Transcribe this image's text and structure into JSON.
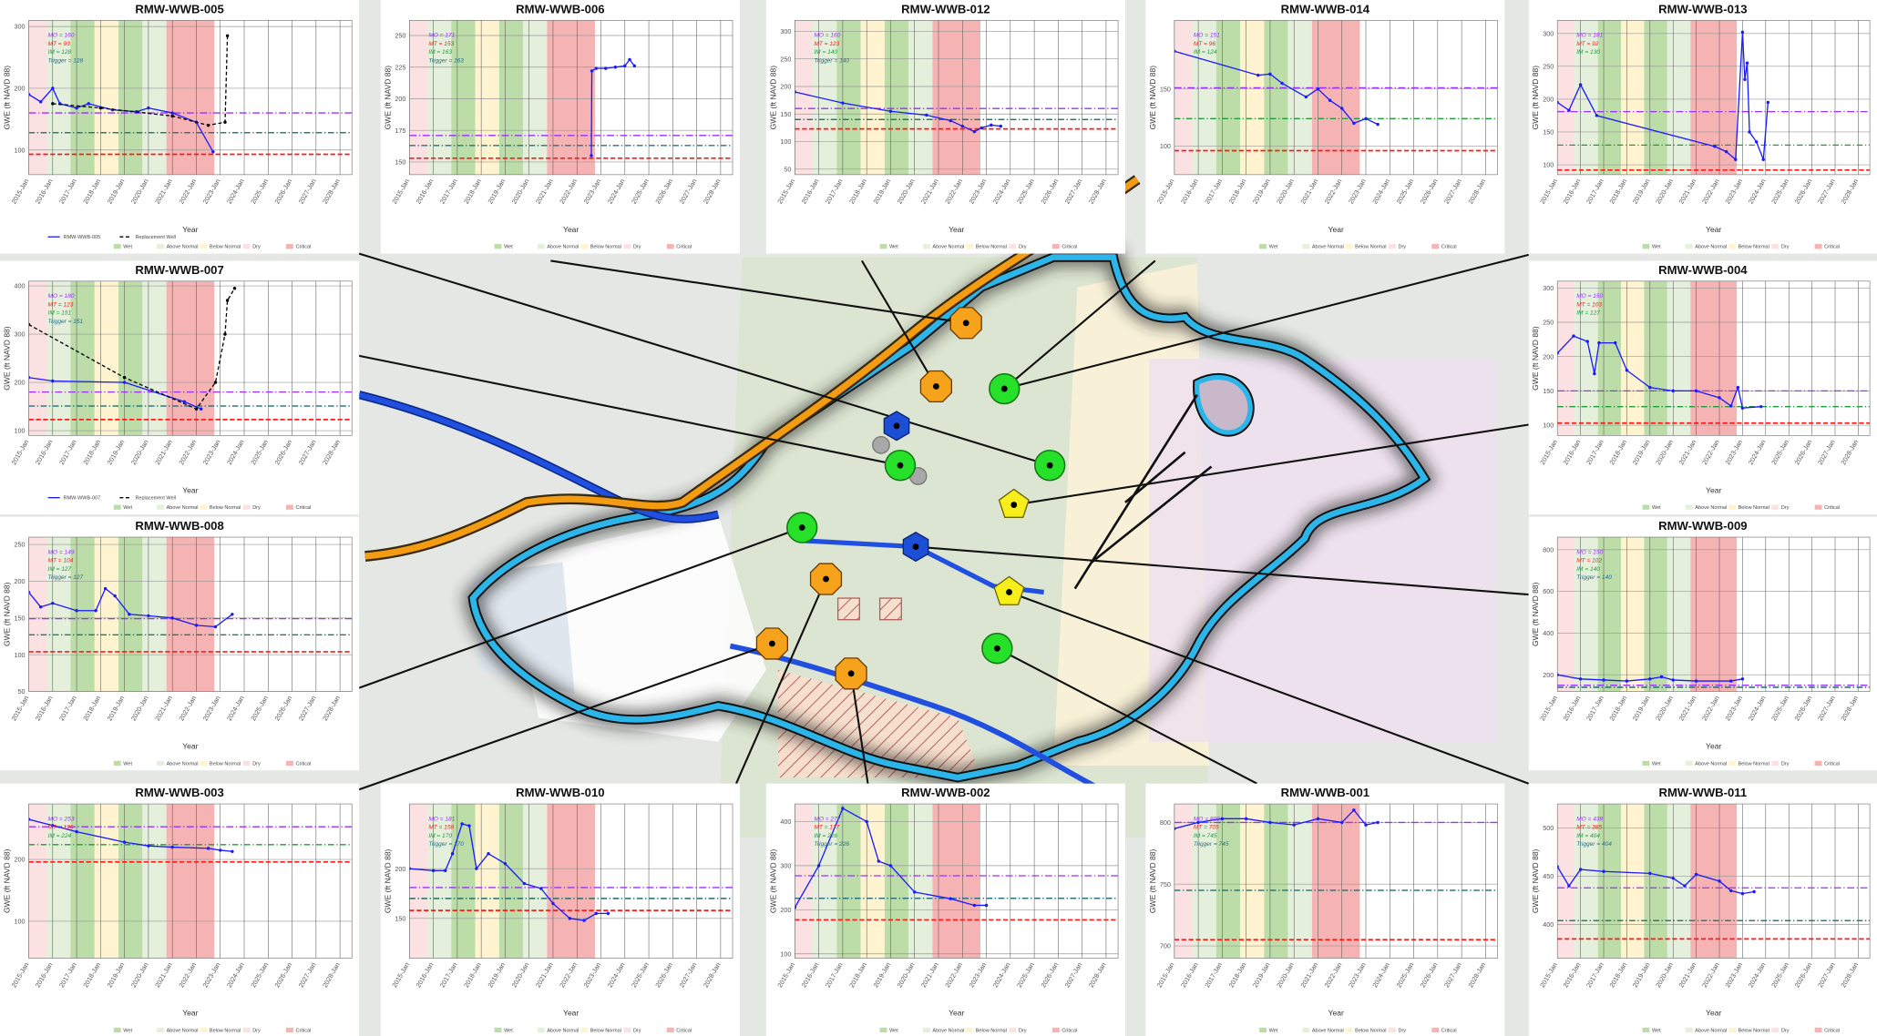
{
  "x_axis": {
    "label": "Year",
    "xlim": [
      2015,
      2028.5
    ],
    "xticks": [
      {
        "value": 2015,
        "label": "2015-Jan"
      },
      {
        "value": 2016,
        "label": "2016-Jan"
      },
      {
        "value": 2017,
        "label": "2017-Jan"
      },
      {
        "value": 2018,
        "label": "2018-Jan"
      },
      {
        "value": 2019,
        "label": "2019-Jan"
      },
      {
        "value": 2020,
        "label": "2020-Jan"
      },
      {
        "value": 2021,
        "label": "2021-Jan"
      },
      {
        "value": 2022,
        "label": "2022-Jan"
      },
      {
        "value": 2023,
        "label": "2023-Jan"
      },
      {
        "value": 2024,
        "label": "2024-Jan"
      },
      {
        "value": 2025,
        "label": "2025-Jan"
      },
      {
        "value": 2026,
        "label": "2026-Jan"
      },
      {
        "value": 2027,
        "label": "2027-Jan"
      },
      {
        "value": 2028,
        "label": "2028-Jan"
      }
    ]
  },
  "y_axis_label": "GWE (ft NAVD 88)",
  "water_years": {
    "types": [
      {
        "name": "Wet",
        "color": "#bcdca8"
      },
      {
        "name": "Above Normal",
        "color": "#e4f0dc"
      },
      {
        "name": "Below Normal",
        "color": "#fff4cf"
      },
      {
        "name": "Dry",
        "color": "#fbe1e1"
      },
      {
        "name": "Critical",
        "color": "#f6b3b3"
      }
    ],
    "bands": [
      {
        "start": 2014.75,
        "end": 2015.75,
        "type": 3
      },
      {
        "start": 2015.75,
        "end": 2016.75,
        "type": 1
      },
      {
        "start": 2016.75,
        "end": 2017.75,
        "type": 0
      },
      {
        "start": 2017.75,
        "end": 2018.75,
        "type": 2
      },
      {
        "start": 2018.75,
        "end": 2019.75,
        "type": 0
      },
      {
        "start": 2019.75,
        "end": 2020.75,
        "type": 1
      },
      {
        "start": 2020.75,
        "end": 2022.75,
        "type": 4
      }
    ]
  },
  "chart_data": [
    {
      "type": "line",
      "title": "RMW-WWB-005",
      "ylim": [
        60,
        310
      ],
      "yticks": [
        100,
        200,
        300
      ],
      "thresholds": [
        {
          "label": "MO = 160",
          "value": 160,
          "color": "#9b30ff"
        },
        {
          "label": "MT = 93",
          "value": 93,
          "color": "#ff1a1a"
        },
        {
          "label": "IM = 128",
          "value": 128,
          "color": "#1e9e3a"
        },
        {
          "label": "Trigger = 128",
          "value": 128,
          "color": "#2b6f80"
        }
      ],
      "series": [
        {
          "name": "RMW-WWB-005",
          "color": "#1a1aff",
          "x": [
            2015,
            2015.5,
            2016,
            2016.3,
            2017,
            2017.5,
            2018.5,
            2019.5,
            2020,
            2021,
            2022,
            2022.7
          ],
          "values": [
            190,
            178,
            200,
            175,
            168,
            175,
            165,
            162,
            168,
            160,
            145,
            97
          ]
        },
        {
          "name": "Replacement Well",
          "color": "#000000",
          "line_style": "dashed",
          "x": [
            2016,
            2018,
            2021,
            2022.5,
            2023.2,
            2023.3
          ],
          "values": [
            175,
            168,
            155,
            140,
            145,
            285
          ]
        }
      ]
    },
    {
      "type": "line",
      "title": "RMW-WWB-006",
      "ylim": [
        140,
        262
      ],
      "yticks": [
        150,
        175,
        200,
        225,
        250
      ],
      "thresholds": [
        {
          "label": "MO = 171",
          "value": 171,
          "color": "#9b30ff"
        },
        {
          "label": "MT = 153",
          "value": 153,
          "color": "#ff1a1a"
        },
        {
          "label": "IM = 163",
          "value": 163,
          "color": "#1e9e3a"
        },
        {
          "label": "Trigger = 163",
          "value": 163,
          "color": "#2b6f80"
        }
      ],
      "series": [
        {
          "color": "#1a1aff",
          "x": [
            2022.6,
            2022.62,
            2022.8,
            2023.2,
            2023.6,
            2024,
            2024.2,
            2024.4
          ],
          "values": [
            155,
            222,
            224,
            224,
            225,
            226,
            231,
            226
          ]
        }
      ]
    },
    {
      "type": "line",
      "title": "RMW-WWB-012",
      "ylim": [
        40,
        320
      ],
      "yticks": [
        50,
        100,
        150,
        200,
        250,
        300
      ],
      "thresholds": [
        {
          "label": "MO = 160",
          "value": 160,
          "color": "#9b30ff"
        },
        {
          "label": "MT = 123",
          "value": 123,
          "color": "#ff1a1a"
        },
        {
          "label": "IM = 140",
          "value": 140,
          "color": "#1e9e3a"
        },
        {
          "label": "Trigger = 140",
          "value": 140,
          "color": "#2b6f80"
        }
      ],
      "series": [
        {
          "color": "#1a1aff",
          "x": [
            2015,
            2017,
            2019,
            2020.5,
            2021.5,
            2022,
            2022.5,
            2022.8,
            2023.2,
            2023.6
          ],
          "values": [
            190,
            170,
            155,
            148,
            138,
            128,
            118,
            125,
            130,
            128
          ]
        }
      ]
    },
    {
      "type": "line",
      "title": "RMW-WWB-014",
      "ylim": [
        75,
        210
      ],
      "yticks": [
        100,
        150
      ],
      "thresholds": [
        {
          "label": "MO = 151",
          "value": 151,
          "color": "#9b30ff"
        },
        {
          "label": "MT = 96",
          "value": 96,
          "color": "#ff1a1a"
        },
        {
          "label": "IM = 124",
          "value": 124,
          "color": "#1e9e3a"
        }
      ],
      "series": [
        {
          "color": "#1a1aff",
          "x": [
            2015,
            2018.5,
            2019,
            2019.5,
            2020.5,
            2021,
            2021.5,
            2022,
            2022.5,
            2023,
            2023.5
          ],
          "values": [
            183,
            162,
            163,
            155,
            143,
            150,
            140,
            133,
            120,
            124,
            119
          ]
        }
      ]
    },
    {
      "type": "line",
      "title": "RMW-WWB-013",
      "ylim": [
        85,
        320
      ],
      "yticks": [
        100,
        150,
        200,
        250,
        300
      ],
      "thresholds": [
        {
          "label": "MO = 181",
          "value": 181,
          "color": "#9b30ff"
        },
        {
          "label": "MT = 92",
          "value": 92,
          "color": "#ff1a1a"
        },
        {
          "label": "IM = 130",
          "value": 130,
          "color": "#1e9e3a"
        }
      ],
      "series": [
        {
          "color": "#1a1aff",
          "x": [
            2015,
            2015.5,
            2016,
            2016.7,
            2021.8,
            2022.3,
            2022.7,
            2023,
            2023.1,
            2023.2,
            2023.3,
            2023.6,
            2023.9,
            2024.1
          ],
          "values": [
            195,
            183,
            222,
            175,
            128,
            120,
            108,
            302,
            230,
            255,
            150,
            135,
            108,
            195
          ]
        }
      ]
    },
    {
      "type": "line",
      "title": "RMW-WWB-007",
      "ylim": [
        90,
        410
      ],
      "yticks": [
        100,
        200,
        300,
        400
      ],
      "thresholds": [
        {
          "label": "MO = 180",
          "value": 180,
          "color": "#9b30ff"
        },
        {
          "label": "MT = 123",
          "value": 123,
          "color": "#ff1a1a"
        },
        {
          "label": "IM = 151",
          "value": 151,
          "color": "#1e9e3a"
        },
        {
          "label": "Trigger = 151",
          "value": 151,
          "color": "#2b6f80"
        }
      ],
      "series": [
        {
          "name": "RMW-WWB-007",
          "color": "#1a1aff",
          "x": [
            2015,
            2016,
            2019,
            2021.5,
            2022.2
          ],
          "values": [
            210,
            203,
            200,
            160,
            145
          ]
        },
        {
          "name": "Replacement Well",
          "color": "#000000",
          "line_style": "dashed",
          "x": [
            2015,
            2019,
            2022,
            2022.8,
            2023.2,
            2023.3,
            2023.6
          ],
          "values": [
            320,
            210,
            145,
            200,
            300,
            370,
            395
          ]
        }
      ]
    },
    {
      "type": "line",
      "title": "RMW-WWB-004",
      "ylim": [
        85,
        310
      ],
      "yticks": [
        100,
        150,
        200,
        250,
        300
      ],
      "thresholds": [
        {
          "label": "MO = 150",
          "value": 150,
          "color": "#9b30ff"
        },
        {
          "label": "MT = 103",
          "value": 103,
          "color": "#ff1a1a"
        },
        {
          "label": "IM = 127",
          "value": 127,
          "color": "#1e9e3a"
        }
      ],
      "series": [
        {
          "color": "#1a1aff",
          "x": [
            2015,
            2015.7,
            2016.3,
            2016.6,
            2016.8,
            2017.5,
            2018,
            2019,
            2020,
            2021,
            2022,
            2022.5,
            2022.8,
            2023,
            2023.8
          ],
          "values": [
            205,
            230,
            222,
            175,
            220,
            220,
            180,
            155,
            150,
            150,
            140,
            128,
            155,
            125,
            127
          ]
        }
      ]
    },
    {
      "type": "line",
      "title": "RMW-WWB-008",
      "ylim": [
        50,
        260
      ],
      "yticks": [
        50,
        100,
        150,
        200,
        250
      ],
      "thresholds": [
        {
          "label": "MO = 149",
          "value": 149,
          "color": "#9b30ff"
        },
        {
          "label": "MT = 104",
          "value": 104,
          "color": "#ff1a1a"
        },
        {
          "label": "IM = 127",
          "value": 127,
          "color": "#1e9e3a"
        },
        {
          "label": "Trigger = 127",
          "value": 127,
          "color": "#2b6f80"
        }
      ],
      "series": [
        {
          "color": "#1a1aff",
          "x": [
            2015,
            2015.5,
            2016,
            2017,
            2017.8,
            2018.2,
            2018.6,
            2019.2,
            2020,
            2021,
            2022,
            2022.8,
            2023.5
          ],
          "values": [
            185,
            165,
            170,
            160,
            160,
            190,
            180,
            155,
            153,
            150,
            140,
            138,
            155
          ]
        }
      ]
    },
    {
      "type": "line",
      "title": "RMW-WWB-009",
      "ylim": [
        120,
        860
      ],
      "yticks": [
        200,
        400,
        600,
        800
      ],
      "thresholds": [
        {
          "label": "MO = 150",
          "value": 150,
          "color": "#9b30ff"
        },
        {
          "label": "MT = 102",
          "value": 102,
          "color": "#ff1a1a"
        },
        {
          "label": "IM = 140",
          "value": 140,
          "color": "#1e9e3a"
        },
        {
          "label": "Trigger = 140",
          "value": 140,
          "color": "#2b6f80"
        }
      ],
      "series": [
        {
          "color": "#1a1aff",
          "x": [
            2015,
            2016,
            2017,
            2018,
            2019,
            2019.5,
            2020,
            2021,
            2022.5,
            2023
          ],
          "values": [
            200,
            180,
            175,
            170,
            180,
            190,
            175,
            170,
            170,
            180
          ]
        }
      ]
    },
    {
      "type": "line",
      "title": "RMW-WWB-003",
      "ylim": [
        40,
        290
      ],
      "yticks": [
        100,
        200
      ],
      "thresholds": [
        {
          "label": "MO = 253",
          "value": 253,
          "color": "#9b30ff"
        },
        {
          "label": "MT = 196",
          "value": 196,
          "color": "#ff1a1a"
        },
        {
          "label": "IM = 224",
          "value": 224,
          "color": "#1e9e3a"
        }
      ],
      "series": [
        {
          "color": "#1a1aff",
          "x": [
            2015,
            2016,
            2017,
            2019,
            2020,
            2021,
            2022.5,
            2023,
            2023.5
          ],
          "values": [
            265,
            255,
            245,
            228,
            222,
            220,
            218,
            215,
            213
          ]
        }
      ]
    },
    {
      "type": "line",
      "title": "RMW-WWB-010",
      "ylim": [
        110,
        265
      ],
      "yticks": [
        150,
        200
      ],
      "thresholds": [
        {
          "label": "MO = 181",
          "value": 181,
          "color": "#9b30ff"
        },
        {
          "label": "MT = 158",
          "value": 158,
          "color": "#ff1a1a"
        },
        {
          "label": "IM = 170",
          "value": 170,
          "color": "#1e9e3a"
        },
        {
          "label": "Trigger = 170",
          "value": 170,
          "color": "#2b6f80"
        }
      ],
      "series": [
        {
          "color": "#1a1aff",
          "x": [
            2015,
            2016,
            2016.5,
            2016.8,
            2017.2,
            2017.5,
            2017.8,
            2018.3,
            2019,
            2019.8,
            2020.5,
            2021,
            2021.7,
            2022.3,
            2022.8,
            2023.3
          ],
          "values": [
            200,
            198,
            198,
            215,
            245,
            243,
            200,
            215,
            205,
            185,
            180,
            165,
            150,
            148,
            155,
            155
          ]
        }
      ]
    },
    {
      "type": "line",
      "title": "RMW-WWB-002",
      "ylim": [
        90,
        440
      ],
      "yticks": [
        100,
        200,
        300,
        400
      ],
      "thresholds": [
        {
          "label": "MO = 277",
          "value": 277,
          "color": "#9b30ff"
        },
        {
          "label": "MT = 177",
          "value": 177,
          "color": "#ff1a1a"
        },
        {
          "label": "IM = 226",
          "value": 226,
          "color": "#1e9e3a"
        },
        {
          "label": "Trigger = 226",
          "value": 226,
          "color": "#2b6f80"
        }
      ],
      "series": [
        {
          "color": "#1a1aff",
          "x": [
            2015,
            2016,
            2017,
            2018,
            2018.5,
            2019,
            2020,
            2021.5,
            2022.5,
            2023
          ],
          "values": [
            205,
            300,
            430,
            400,
            310,
            300,
            240,
            225,
            210,
            210
          ]
        }
      ]
    },
    {
      "type": "line",
      "title": "RMW-WWB-001",
      "ylim": [
        690,
        815
      ],
      "yticks": [
        700,
        750,
        800
      ],
      "thresholds": [
        {
          "label": "MO = 800",
          "value": 800,
          "color": "#9b30ff"
        },
        {
          "label": "MT = 705",
          "value": 705,
          "color": "#ff1a1a"
        },
        {
          "label": "IM = 745",
          "value": 745,
          "color": "#1e9e3a"
        },
        {
          "label": "Trigger = 745",
          "value": 745,
          "color": "#2b6f80"
        }
      ],
      "series": [
        {
          "color": "#1a1aff",
          "x": [
            2015,
            2016,
            2017,
            2018,
            2019,
            2020,
            2021,
            2022,
            2022.5,
            2023,
            2023.5
          ],
          "values": [
            795,
            800,
            803,
            803,
            800,
            798,
            803,
            800,
            810,
            798,
            800
          ]
        }
      ]
    },
    {
      "type": "line",
      "title": "RMW-WWB-011",
      "ylim": [
        365,
        525
      ],
      "yticks": [
        400,
        450,
        500
      ],
      "thresholds": [
        {
          "label": "MO = 438",
          "value": 438,
          "color": "#9b30ff"
        },
        {
          "label": "MT = 385",
          "value": 385,
          "color": "#ff1a1a"
        },
        {
          "label": "IM = 404",
          "value": 404,
          "color": "#1e9e3a"
        },
        {
          "label": "Trigger = 404",
          "value": 404,
          "color": "#2b6f80"
        }
      ],
      "series": [
        {
          "color": "#1a1aff",
          "x": [
            2015,
            2015.5,
            2016,
            2017,
            2019,
            2020,
            2020.5,
            2021,
            2022,
            2022.5,
            2023,
            2023.5
          ],
          "values": [
            460,
            440,
            457,
            455,
            453,
            448,
            440,
            452,
            445,
            435,
            432,
            434
          ]
        }
      ]
    }
  ]
}
